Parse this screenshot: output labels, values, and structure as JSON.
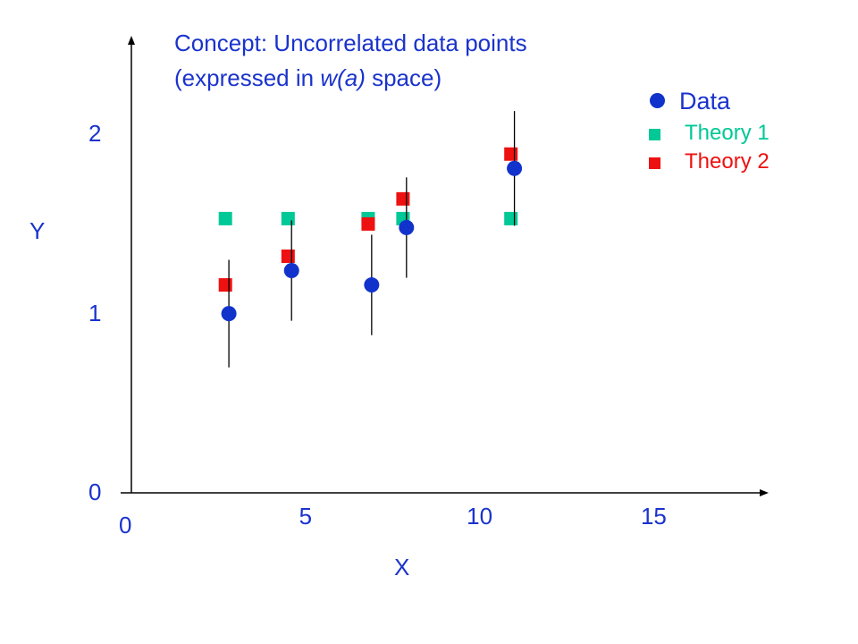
{
  "chart_data": {
    "type": "scatter",
    "title_line1": "Concept: Uncorrelated data points",
    "title_line2_prefix": "(expressed in ",
    "title_line2_italic": "w(a)",
    "title_line2_suffix": " space)",
    "xlabel": "X",
    "ylabel": "Y",
    "x_origin_label": "0",
    "xlim": [
      0,
      18.3
    ],
    "ylim": [
      0,
      2.55
    ],
    "x_ticks": [
      5,
      10,
      15
    ],
    "y_ticks": [
      0,
      1,
      2
    ],
    "legend_position": "top-right",
    "series": [
      {
        "name": "Data",
        "marker": "circle",
        "color": "#1133cc",
        "x": [
          2.8,
          4.6,
          6.9,
          7.9,
          11.0
        ],
        "y": [
          1.0,
          1.24,
          1.16,
          1.48,
          1.81
        ],
        "yerr": [
          0.3,
          0.28,
          0.28,
          0.28,
          0.32
        ]
      },
      {
        "name": "Theory 1",
        "marker": "square",
        "color": "#00c896",
        "x": [
          2.7,
          4.5,
          6.8,
          7.8,
          10.9
        ],
        "y": [
          1.53,
          1.53,
          1.53,
          1.53,
          1.53
        ]
      },
      {
        "name": "Theory 2",
        "marker": "square",
        "color": "#ee1111",
        "x": [
          2.7,
          4.5,
          6.8,
          7.8,
          10.9
        ],
        "y": [
          1.16,
          1.32,
          1.5,
          1.64,
          1.89
        ]
      }
    ]
  },
  "colors": {
    "text": "#1a33cc",
    "axis": "#000000"
  }
}
